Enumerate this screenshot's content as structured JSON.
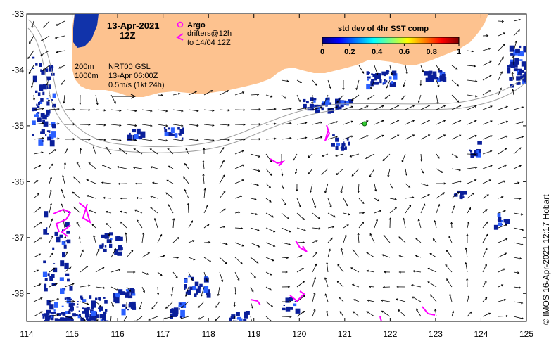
{
  "title": {
    "date": "13-Apr-2021",
    "hour": "12Z"
  },
  "legend": {
    "argo_label": "Argo",
    "drifters_label": "drifters@12h",
    "drifters_to": "to 14/04 12Z",
    "argo_color": "#ff00ff",
    "drifter_color": "#ff00ff"
  },
  "info": {
    "iso200": "200m",
    "iso1000": "1000m",
    "product": "NRT00 GSL",
    "product_time": "13-Apr 06:00Z",
    "vector_scale": "0.5m/s (1kt 24h)"
  },
  "colorbar": {
    "title": "std dev of 4hr SST comp",
    "ticks": [
      "0",
      "0.2",
      "0.4",
      "0.6",
      "0.8",
      "1"
    ],
    "stops": [
      "#00007f",
      "#0000ff",
      "#007fff",
      "#00ffff",
      "#7fff7f",
      "#ffff00",
      "#ff7f00",
      "#ff0000",
      "#7f0000"
    ]
  },
  "credit": "© IMOS 16-Apr-2021 12:17 Hobart",
  "colors": {
    "land": "#fdc28f",
    "ocean": "#ffffff",
    "sst_noise": "#0a1f9a",
    "isobath": "#a0a0a0"
  },
  "chart_data": {
    "type": "map",
    "xlim": [
      114,
      125
    ],
    "ylim": [
      -38.5,
      -33
    ],
    "x_ticks": [
      "114",
      "115",
      "116",
      "117",
      "118",
      "119",
      "120",
      "121",
      "122",
      "123",
      "124",
      "125"
    ],
    "y_ticks": [
      "-33",
      "-34",
      "-35",
      "-36",
      "-37",
      "-38"
    ]
  }
}
